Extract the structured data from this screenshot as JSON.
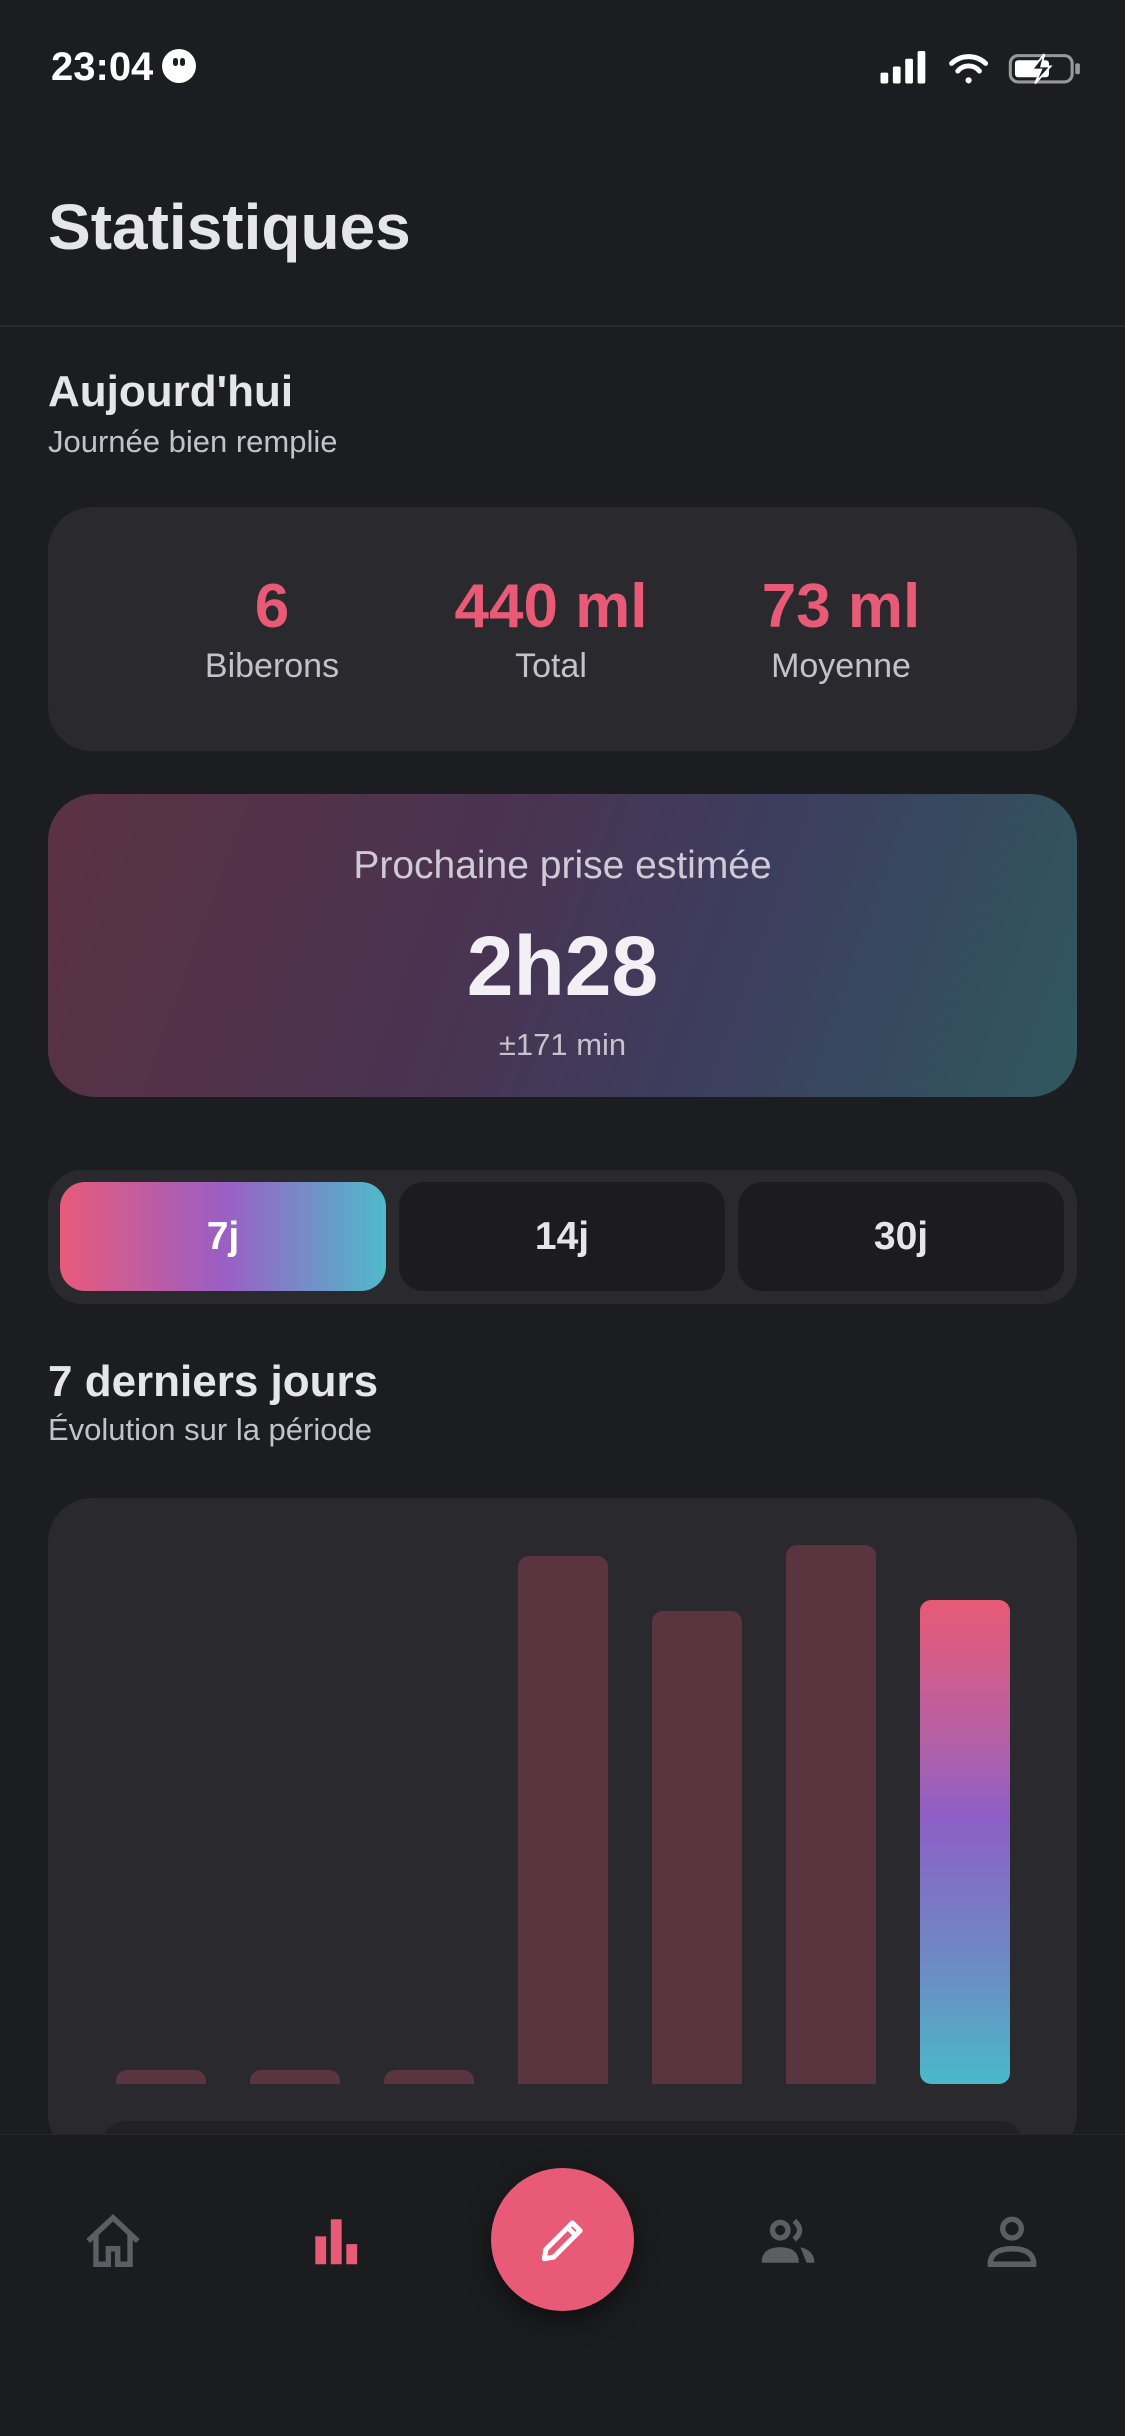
{
  "status_bar": {
    "time": "23:04"
  },
  "header": {
    "title": "Statistiques"
  },
  "today": {
    "title": "Aujourd'hui",
    "subtitle": "Journée bien remplie",
    "stats": [
      {
        "value": "6",
        "label": "Biberons"
      },
      {
        "value": "440 ml",
        "label": "Total"
      },
      {
        "value": "73 ml",
        "label": "Moyenne"
      }
    ]
  },
  "prediction": {
    "label": "Prochaine prise estimée",
    "value": "2h28",
    "margin": "±171 min"
  },
  "period_selector": {
    "options": [
      "7j",
      "14j",
      "30j"
    ],
    "selected": "7j"
  },
  "period": {
    "title": "7 derniers jours",
    "subtitle": "Évolution sur la période"
  },
  "chart_data": {
    "type": "bar",
    "values": [
      0,
      0,
      0,
      480,
      430,
      490,
      440
    ],
    "highlighted_index": 6,
    "colors": {
      "bar": "#5a3540",
      "highlight_gradient": [
        "#e85a75",
        "#8d5fc6",
        "#4ab9c9"
      ]
    }
  },
  "nav": {
    "items": [
      "home-icon",
      "bar-chart-icon",
      "pencil-icon",
      "people-icon",
      "person-icon"
    ],
    "active": "bar-chart-icon",
    "accent": "#e85a75"
  }
}
